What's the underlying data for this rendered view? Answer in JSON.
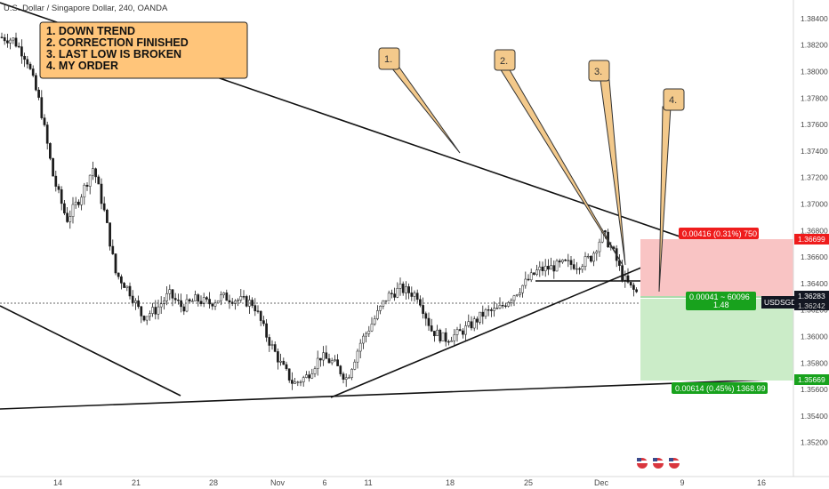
{
  "header": {
    "symbol_title": "U.S. Dollar / Singapore Dollar, 240, OANDA"
  },
  "notes": {
    "title_lines": [
      "1. DOWN TREND",
      "2. CORRECTION FINISHED",
      "3. LAST LOW IS BROKEN",
      "4. MY ORDER"
    ],
    "callouts": [
      "1.",
      "2.",
      "3.",
      "4."
    ]
  },
  "colors": {
    "background": "#ffffff",
    "candle": "#1b1b1b",
    "note_fill": "#ffc57a",
    "callout_fill": "#f3c98b",
    "stop_zone": "#f9c4c4",
    "target_zone": "#cbecc8",
    "stop_label": "#ef1c1c",
    "target_label": "#18a21d",
    "symbol_label": "#131722",
    "axis_text": "#4a4a4a"
  },
  "chart_data": {
    "type": "candlestick",
    "symbol": "USDSGD",
    "ylim": [
      1.3505,
      1.385
    ],
    "y_ticks": [
      "1.38400",
      "1.38200",
      "1.38000",
      "1.37800",
      "1.37600",
      "1.37400",
      "1.37200",
      "1.37000",
      "1.36800",
      "1.36600",
      "1.36400",
      "1.36200",
      "1.36000",
      "1.35800",
      "1.35600",
      "1.35400",
      "1.35200"
    ],
    "x_ticks": [
      "14",
      "21",
      "28",
      "Nov",
      "6",
      "11",
      "18",
      "25",
      "Dec",
      "9",
      "16"
    ],
    "anchors": [
      {
        "x": 0,
        "y": 1.3826
      },
      {
        "x": 15,
        "y": 1.3824
      },
      {
        "x": 30,
        "y": 1.381
      },
      {
        "x": 45,
        "y": 1.3775
      },
      {
        "x": 60,
        "y": 1.372
      },
      {
        "x": 75,
        "y": 1.3688
      },
      {
        "x": 90,
        "y": 1.3705
      },
      {
        "x": 105,
        "y": 1.3728
      },
      {
        "x": 118,
        "y": 1.3692
      },
      {
        "x": 130,
        "y": 1.3648
      },
      {
        "x": 145,
        "y": 1.3635
      },
      {
        "x": 160,
        "y": 1.3615
      },
      {
        "x": 175,
        "y": 1.362
      },
      {
        "x": 190,
        "y": 1.3632
      },
      {
        "x": 205,
        "y": 1.3622
      },
      {
        "x": 220,
        "y": 1.3628
      },
      {
        "x": 235,
        "y": 1.3625
      },
      {
        "x": 250,
        "y": 1.363
      },
      {
        "x": 265,
        "y": 1.3628
      },
      {
        "x": 285,
        "y": 1.3625
      },
      {
        "x": 300,
        "y": 1.36
      },
      {
        "x": 315,
        "y": 1.358
      },
      {
        "x": 330,
        "y": 1.3564
      },
      {
        "x": 345,
        "y": 1.357
      },
      {
        "x": 360,
        "y": 1.3585
      },
      {
        "x": 375,
        "y": 1.358
      },
      {
        "x": 390,
        "y": 1.3568
      },
      {
        "x": 405,
        "y": 1.3595
      },
      {
        "x": 420,
        "y": 1.3612
      },
      {
        "x": 435,
        "y": 1.363
      },
      {
        "x": 450,
        "y": 1.3636
      },
      {
        "x": 470,
        "y": 1.3631
      },
      {
        "x": 485,
        "y": 1.3605
      },
      {
        "x": 500,
        "y": 1.3598
      },
      {
        "x": 515,
        "y": 1.3602
      },
      {
        "x": 530,
        "y": 1.3609
      },
      {
        "x": 545,
        "y": 1.3618
      },
      {
        "x": 560,
        "y": 1.362
      },
      {
        "x": 575,
        "y": 1.363
      },
      {
        "x": 590,
        "y": 1.364
      },
      {
        "x": 605,
        "y": 1.365
      },
      {
        "x": 620,
        "y": 1.3652
      },
      {
        "x": 635,
        "y": 1.3655
      },
      {
        "x": 650,
        "y": 1.3654
      },
      {
        "x": 665,
        "y": 1.366
      },
      {
        "x": 678,
        "y": 1.3678
      },
      {
        "x": 690,
        "y": 1.3663
      },
      {
        "x": 700,
        "y": 1.3645
      },
      {
        "x": 710,
        "y": 1.3636
      },
      {
        "x": 718,
        "y": 1.3632
      }
    ],
    "position": {
      "entry": 1.36283,
      "stop": 1.36699,
      "target": 1.35669,
      "stop_label": "0.00416 (0.31%) 750",
      "entry_label_1": "0.00041 ~ 60096",
      "entry_label_2": "1.48",
      "target_label": "0.00614 (0.45%) 1368.99",
      "stop_price": "1.36699",
      "entry_price": "1.36283",
      "target_price": "1.35669",
      "symbol_label": "USDSGD",
      "last_price": "1.36242"
    }
  }
}
